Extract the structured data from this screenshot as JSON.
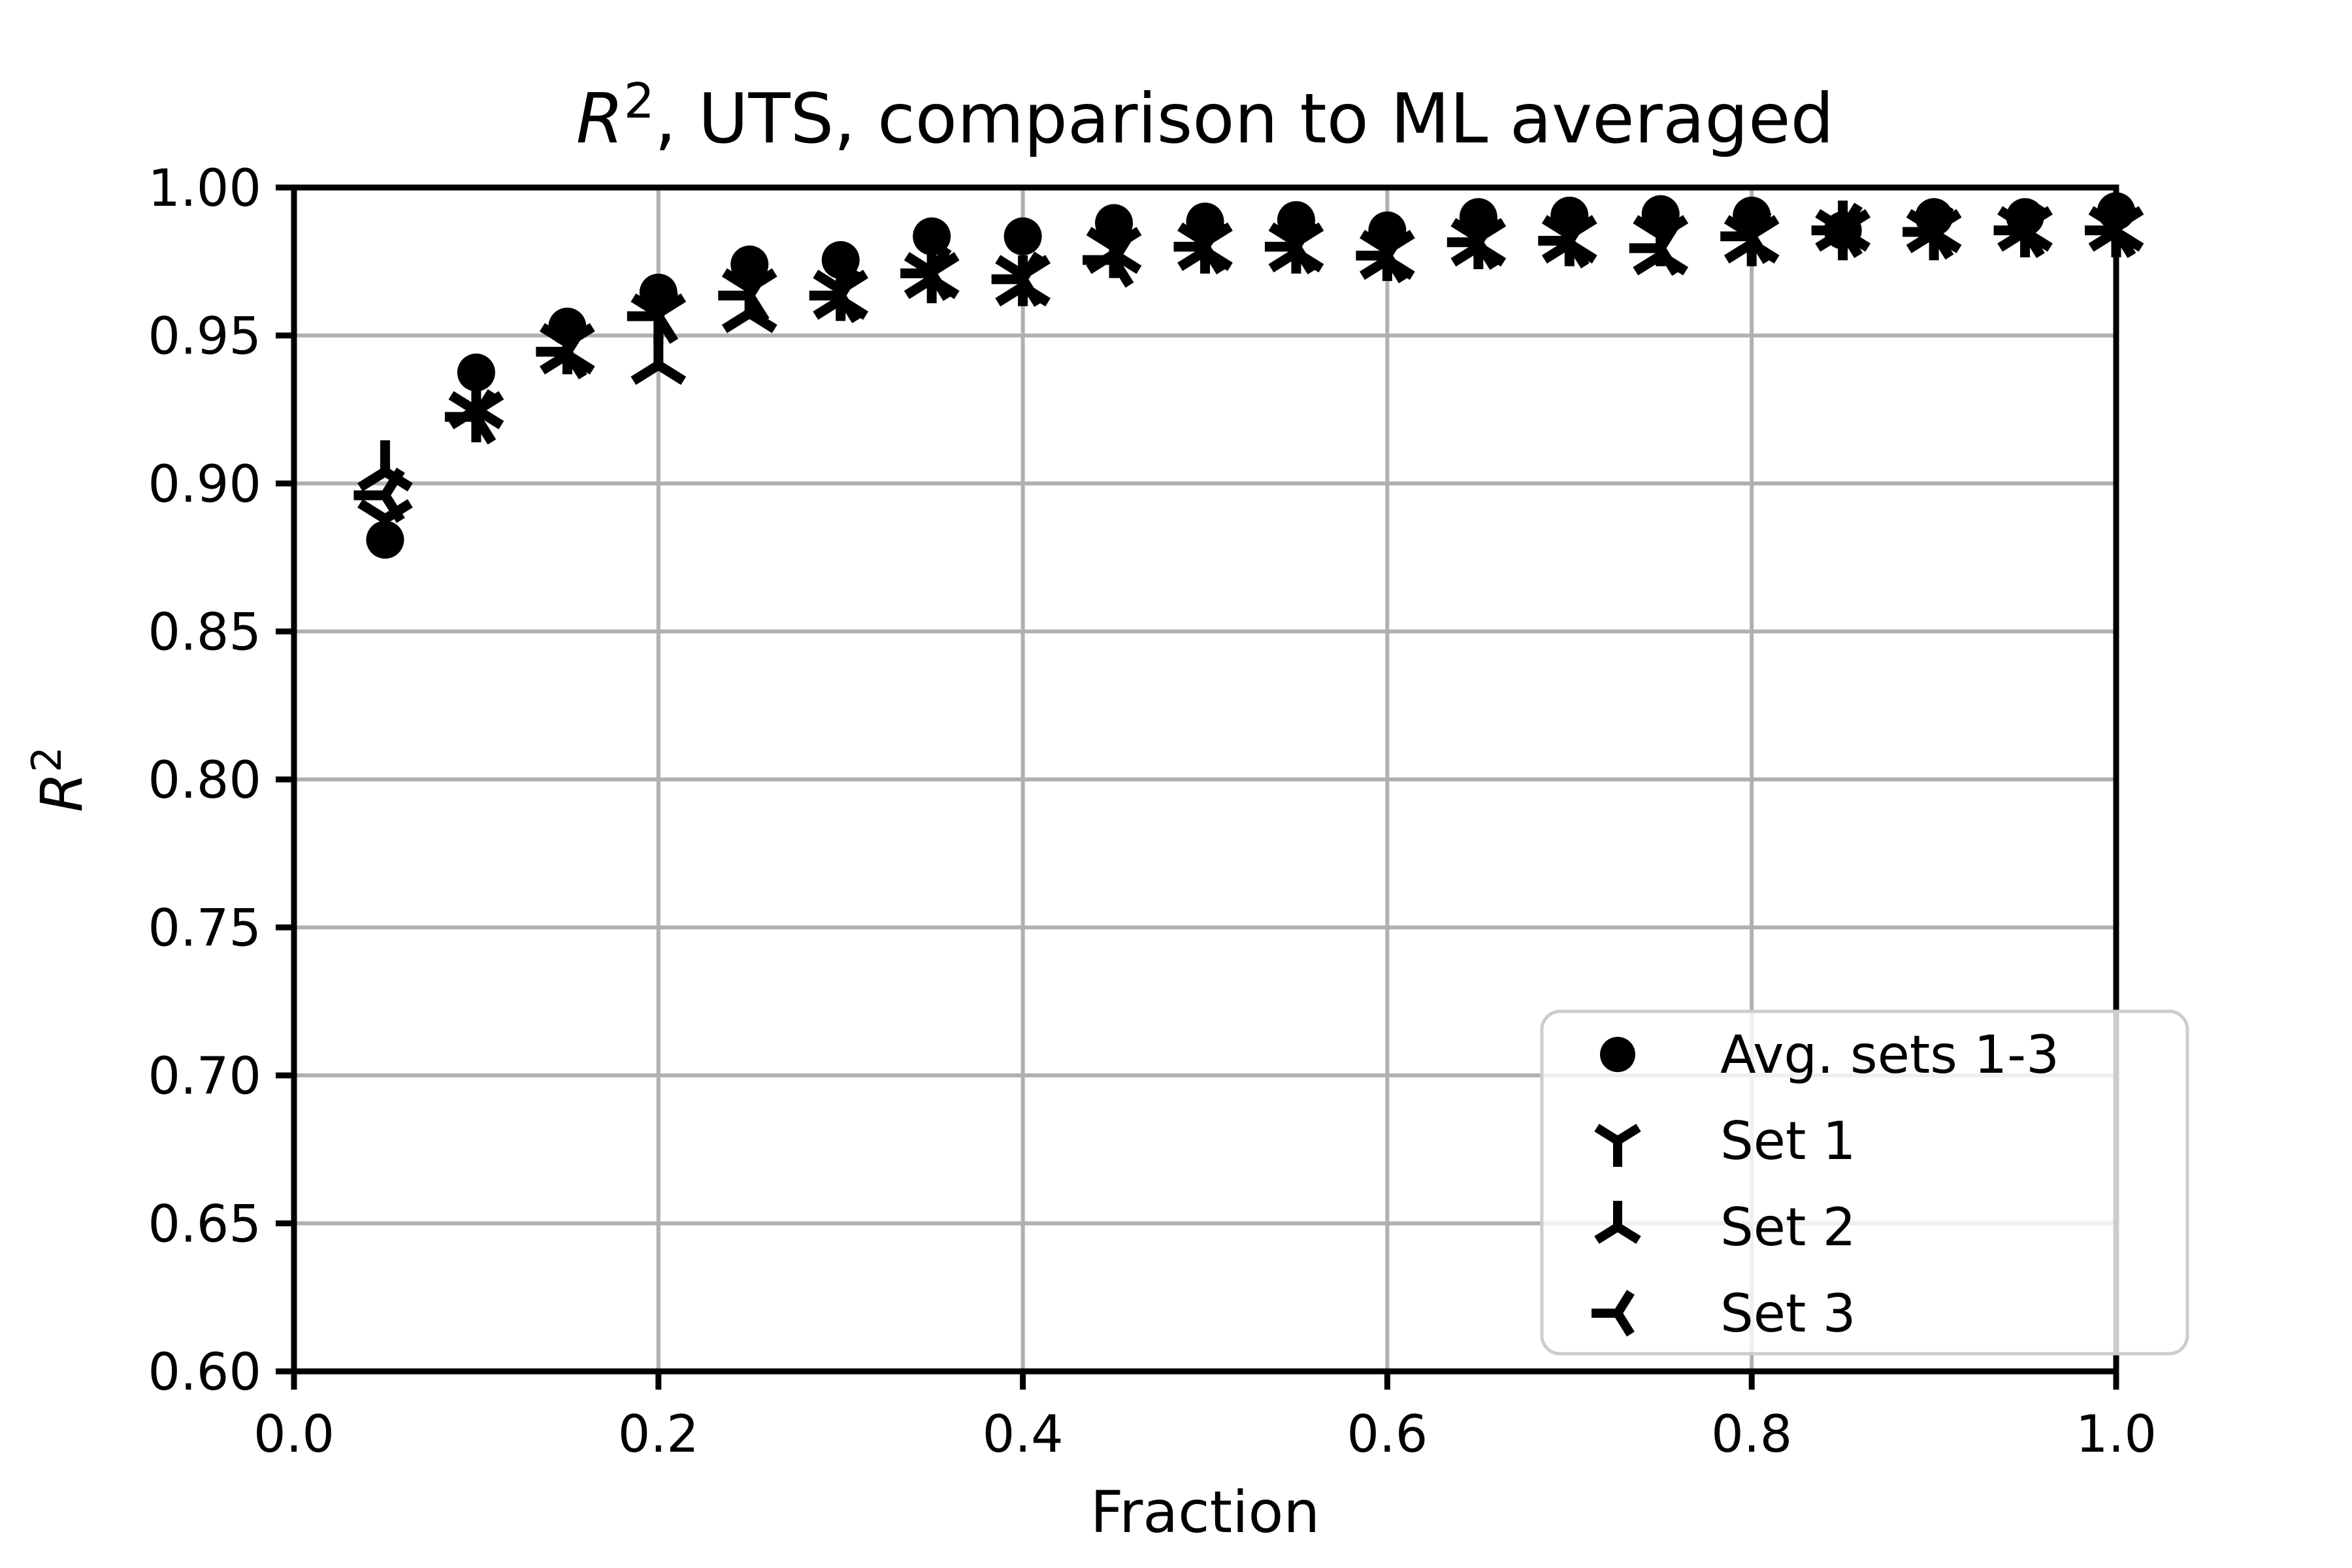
{
  "title": {
    "math_var": "R",
    "math_sup": "2",
    "rest": ", UTS, comparison to ML averaged"
  },
  "axes": {
    "xlabel": "Fraction",
    "ylabel": {
      "math_var": "R",
      "math_sup": "2"
    },
    "xlim": [
      0.0,
      1.0
    ],
    "ylim": [
      0.6,
      1.0
    ],
    "xticks": [
      0.0,
      0.2,
      0.4,
      0.6,
      0.8,
      1.0
    ],
    "xtick_labels": [
      "0.0",
      "0.2",
      "0.4",
      "0.6",
      "0.8",
      "1.0"
    ],
    "yticks": [
      0.6,
      0.65,
      0.7,
      0.75,
      0.8,
      0.85,
      0.9,
      0.95,
      1.0
    ],
    "ytick_labels": [
      "0.60",
      "0.65",
      "0.70",
      "0.75",
      "0.80",
      "0.85",
      "0.90",
      "0.95",
      "1.00"
    ],
    "grid": true
  },
  "colors": {
    "marker": "#000000",
    "grid": "#b0b0b0",
    "spine": "#000000",
    "legend_edge": "#cccccc",
    "background": "#ffffff"
  },
  "legend": {
    "position": "lower right",
    "items": [
      {
        "label": "Avg. sets 1-3",
        "marker": "circle"
      },
      {
        "label": "Set 1",
        "marker": "tri_down"
      },
      {
        "label": "Set 2",
        "marker": "tri_up"
      },
      {
        "label": "Set 3",
        "marker": "tri_left"
      }
    ]
  },
  "chart_data": {
    "type": "scatter",
    "title": "R^2, UTS, comparison to ML averaged",
    "xlabel": "Fraction",
    "ylabel": "R^2",
    "xlim": [
      0.0,
      1.0
    ],
    "ylim": [
      0.6,
      1.0
    ],
    "x": [
      0.05,
      0.1,
      0.15,
      0.2,
      0.25,
      0.3,
      0.35,
      0.4,
      0.45,
      0.5,
      0.55,
      0.6,
      0.65,
      0.7,
      0.75,
      0.8,
      0.85,
      0.9,
      0.95,
      1.0
    ],
    "series": [
      {
        "name": "Avg. sets 1-3",
        "marker": "circle",
        "values": [
          0.881,
          0.9375,
          0.953,
          0.9645,
          0.974,
          0.9755,
          0.9835,
          0.9835,
          0.988,
          0.9885,
          0.989,
          0.9855,
          0.99,
          0.9905,
          0.991,
          0.9905,
          0.9855,
          0.99,
          0.99,
          0.992
        ]
      },
      {
        "name": "Set 1",
        "marker": "tri_down",
        "values": [
          0.888,
          0.9245,
          0.9475,
          0.9575,
          0.966,
          0.9655,
          0.9715,
          0.9705,
          0.98,
          0.9815,
          0.9815,
          0.979,
          0.983,
          0.984,
          0.984,
          0.984,
          0.986,
          0.986,
          0.987,
          0.987
        ]
      },
      {
        "name": "Set 2",
        "marker": "tri_up",
        "values": [
          0.904,
          0.925,
          0.9435,
          0.94,
          0.9575,
          0.962,
          0.969,
          0.9665,
          0.9775,
          0.9785,
          0.978,
          0.9755,
          0.98,
          0.981,
          0.977,
          0.981,
          0.985,
          0.9845,
          0.985,
          0.985
        ]
      },
      {
        "name": "Set 3",
        "marker": "tri_left",
        "values": [
          0.896,
          0.9225,
          0.9445,
          0.9565,
          0.9635,
          0.9635,
          0.971,
          0.969,
          0.9755,
          0.98,
          0.98,
          0.977,
          0.9815,
          0.982,
          0.9795,
          0.9835,
          0.9855,
          0.985,
          0.9855,
          0.9855
        ]
      }
    ]
  }
}
